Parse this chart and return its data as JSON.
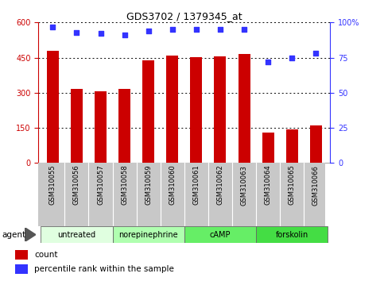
{
  "title": "GDS3702 / 1379345_at",
  "samples": [
    "GSM310055",
    "GSM310056",
    "GSM310057",
    "GSM310058",
    "GSM310059",
    "GSM310060",
    "GSM310061",
    "GSM310062",
    "GSM310063",
    "GSM310064",
    "GSM310065",
    "GSM310066"
  ],
  "counts": [
    480,
    315,
    305,
    315,
    440,
    460,
    452,
    455,
    465,
    130,
    142,
    162
  ],
  "percentiles": [
    97,
    93,
    92,
    91,
    94,
    95,
    95,
    95,
    95,
    72,
    75,
    78
  ],
  "bar_color": "#cc0000",
  "dot_color": "#3333ff",
  "ylim_left": [
    0,
    600
  ],
  "ylim_right": [
    0,
    100
  ],
  "yticks_left": [
    0,
    150,
    300,
    450,
    600
  ],
  "yticks_right": [
    0,
    25,
    50,
    75,
    100
  ],
  "ytick_labels_left": [
    "0",
    "150",
    "300",
    "450",
    "600"
  ],
  "ytick_labels_right": [
    "0",
    "25",
    "50",
    "75",
    "100%"
  ],
  "groups": [
    {
      "label": "untreated",
      "start": 0,
      "end": 3,
      "color": "#e0ffe0"
    },
    {
      "label": "norepinephrine",
      "start": 3,
      "end": 6,
      "color": "#b0ffb0"
    },
    {
      "label": "cAMP",
      "start": 6,
      "end": 9,
      "color": "#66ee66"
    },
    {
      "label": "forskolin",
      "start": 9,
      "end": 12,
      "color": "#44dd44"
    }
  ],
  "legend_count_label": "count",
  "legend_pct_label": "percentile rank within the sample",
  "agent_label": "agent",
  "grid_color": "#000000",
  "bar_width": 0.5,
  "xtick_bg": "#c8c8c8"
}
